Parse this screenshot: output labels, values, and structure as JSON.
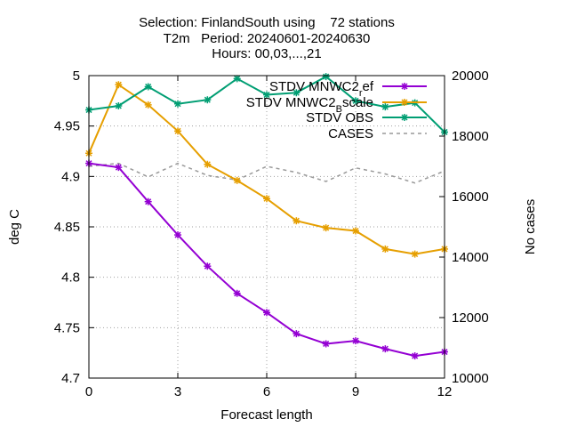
{
  "chart_data": {
    "type": "line",
    "title_lines": [
      "Selection: FinlandSouth using    72 stations",
      "T2m   Period: 20240601-20240630",
      "Hours: 00,03,...,21"
    ],
    "xlabel": "Forecast length",
    "ylabel": "deg C",
    "y2label": "No cases",
    "xlim": [
      0,
      12
    ],
    "ylim": [
      4.7,
      5.0
    ],
    "y2lim": [
      10000,
      20000
    ],
    "xticks": [
      0,
      3,
      6,
      9,
      12
    ],
    "yticks": [
      4.7,
      4.75,
      4.8,
      4.85,
      4.9,
      4.95,
      5
    ],
    "ytick_labels": [
      "4.7",
      "4.75",
      "4.8",
      "4.85",
      "4.9",
      "4.95",
      "5"
    ],
    "y2ticks": [
      10000,
      12000,
      14000,
      16000,
      18000,
      20000
    ],
    "grid": true,
    "legend_position": "top-right",
    "x": [
      0,
      1,
      2,
      3,
      4,
      5,
      6,
      7,
      8,
      9,
      10,
      11,
      12
    ],
    "series": [
      {
        "name": "STDV MNWC2_ref",
        "legend_main": "STDV MNWC2",
        "legend_sub": "r",
        "legend_tail": "ef",
        "color": "#9400d3",
        "axis": "y",
        "marker": "star",
        "values": [
          4.913,
          4.909,
          4.875,
          4.842,
          4.811,
          4.784,
          4.765,
          4.744,
          4.734,
          4.737,
          4.729,
          4.722,
          4.726
        ]
      },
      {
        "name": "STDV MNWC2_Bscale",
        "legend_main": "STDV MNWC2",
        "legend_sub": "B",
        "legend_tail": "scale",
        "color": "#e69f00",
        "axis": "y",
        "marker": "star",
        "values": [
          4.923,
          4.991,
          4.971,
          4.945,
          4.912,
          4.896,
          4.878,
          4.856,
          4.849,
          4.846,
          4.828,
          4.823,
          4.828
        ]
      },
      {
        "name": "STDV OBS",
        "legend_main": "STDV OBS",
        "legend_sub": "",
        "legend_tail": "",
        "color": "#009e73",
        "axis": "y",
        "marker": "star",
        "values": [
          4.966,
          4.97,
          4.989,
          4.972,
          4.976,
          4.997,
          4.981,
          4.983,
          4.999,
          4.975,
          4.969,
          4.973,
          4.944
        ]
      },
      {
        "name": "CASES",
        "legend_main": "CASES",
        "legend_sub": "",
        "legend_tail": "",
        "color": "#999999",
        "axis": "y2",
        "marker": "none",
        "dashed": true,
        "values": [
          17000,
          17100,
          16650,
          17100,
          16700,
          16550,
          17000,
          16800,
          16500,
          16950,
          16750,
          16450,
          16850
        ]
      }
    ]
  }
}
